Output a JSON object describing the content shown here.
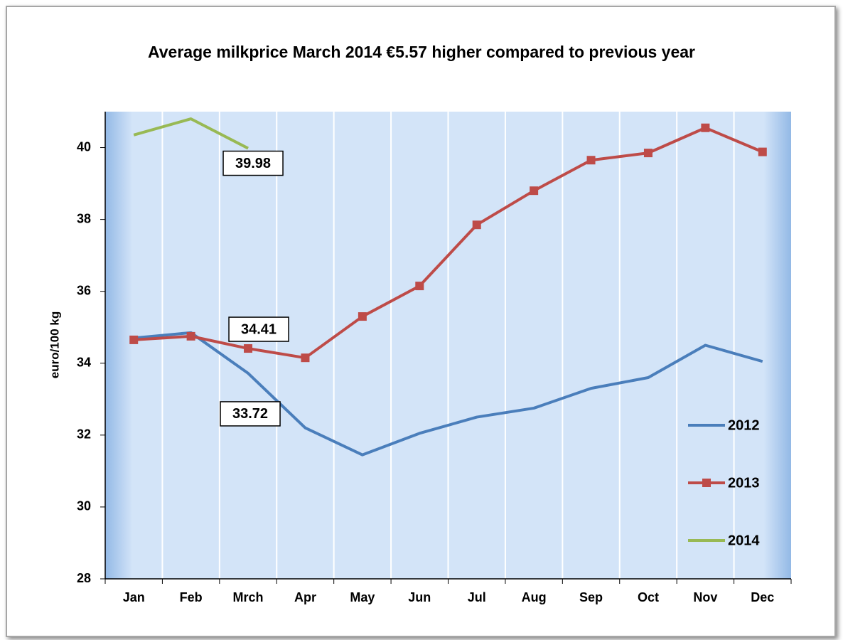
{
  "chart_data": {
    "type": "line",
    "title": "Average milkprice March 2014 €5.57 higher compared to previous year",
    "y_label": "euro/100 kg",
    "categories": [
      "Jan",
      "Feb",
      "Mrch",
      "Apr",
      "May",
      "Jun",
      "Jul",
      "Aug",
      "Sep",
      "Oct",
      "Nov",
      "Dec"
    ],
    "series": [
      {
        "name": "2012",
        "color": "#4a7ebb",
        "marker": "none",
        "values": [
          34.7,
          34.85,
          33.72,
          32.2,
          31.45,
          32.05,
          32.5,
          32.75,
          33.3,
          33.6,
          34.5,
          34.05
        ],
        "value_labels": [
          null,
          null,
          "33.72",
          null,
          null,
          null,
          null,
          null,
          null,
          null,
          null,
          null
        ]
      },
      {
        "name": "2013",
        "color": "#be4b48",
        "marker": "square",
        "values": [
          34.65,
          34.75,
          34.41,
          34.15,
          35.3,
          36.15,
          37.85,
          38.8,
          39.65,
          39.85,
          40.55,
          39.88
        ],
        "value_labels": [
          null,
          null,
          "34.41",
          null,
          null,
          null,
          null,
          null,
          null,
          null,
          null,
          null
        ]
      },
      {
        "name": "2014",
        "color": "#98b954",
        "marker": "none",
        "values": [
          40.35,
          40.8,
          39.98,
          null,
          null,
          null,
          null,
          null,
          null,
          null,
          null,
          null
        ],
        "value_labels": [
          null,
          null,
          "39.98",
          null,
          null,
          null,
          null,
          null,
          null,
          null,
          null,
          null
        ]
      }
    ],
    "ylim": [
      28,
      41
    ],
    "yticks": [
      28,
      30,
      32,
      34,
      36,
      38,
      40
    ],
    "legend": "right"
  }
}
